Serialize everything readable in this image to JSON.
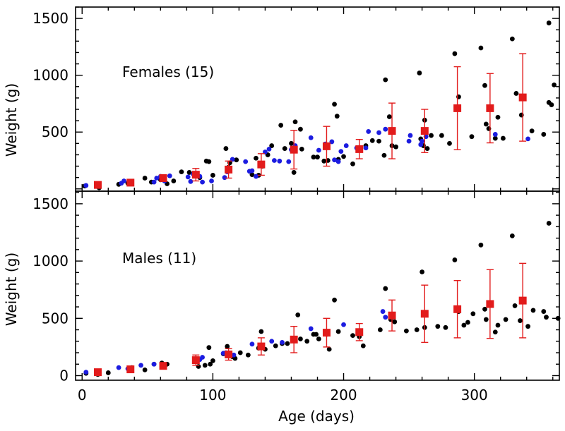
{
  "chart_data": [
    {
      "type": "scatter",
      "panel": "top",
      "title": "Females (15)",
      "xlabel": "",
      "ylabel": "Weight (g)",
      "xlim": [
        -5,
        365
      ],
      "ylim": [
        -20,
        1600
      ],
      "xticks": [],
      "yticks": [
        500,
        1000,
        1500
      ],
      "series": [
        {
          "color": "#000000",
          "points": [
            [
              2,
              25
            ],
            [
              13,
              10
            ],
            [
              28,
              40
            ],
            [
              35,
              50
            ],
            [
              48,
              95
            ],
            [
              53,
              60
            ],
            [
              60,
              80
            ],
            [
              65,
              45
            ],
            [
              70,
              70
            ],
            [
              76,
              150
            ],
            [
              82,
              145
            ],
            [
              87,
              130
            ],
            [
              90,
              100
            ],
            [
              95,
              245
            ],
            [
              97,
              240
            ],
            [
              100,
              120
            ],
            [
              110,
              355
            ],
            [
              112,
              190
            ],
            [
              113,
              230
            ],
            [
              118,
              255
            ],
            [
              130,
              125
            ],
            [
              133,
              270
            ],
            [
              135,
              120
            ],
            [
              138,
              200
            ],
            [
              142,
              300
            ],
            [
              145,
              380
            ],
            [
              152,
              560
            ],
            [
              155,
              355
            ],
            [
              160,
              400
            ],
            [
              162,
              145
            ],
            [
              163,
              590
            ],
            [
              167,
              525
            ],
            [
              168,
              350
            ],
            [
              177,
              280
            ],
            [
              180,
              280
            ],
            [
              185,
              245
            ],
            [
              188,
              250
            ],
            [
              193,
              745
            ],
            [
              195,
              640
            ],
            [
              196,
              260
            ],
            [
              200,
              285
            ],
            [
              207,
              220
            ],
            [
              212,
              350
            ],
            [
              217,
              380
            ],
            [
              222,
              425
            ],
            [
              227,
              420
            ],
            [
              231,
              295
            ],
            [
              232,
              960
            ],
            [
              235,
              635
            ],
            [
              237,
              380
            ],
            [
              240,
              370
            ],
            [
              258,
              1020
            ],
            [
              259,
              440
            ],
            [
              261,
              380
            ],
            [
              262,
              605
            ],
            [
              264,
              355
            ],
            [
              267,
              470
            ],
            [
              275,
              470
            ],
            [
              281,
              400
            ],
            [
              285,
              1190
            ],
            [
              288,
              810
            ],
            [
              298,
              460
            ],
            [
              305,
              1240
            ],
            [
              308,
              910
            ],
            [
              309,
              570
            ],
            [
              311,
              530
            ],
            [
              316,
              445
            ],
            [
              318,
              630
            ],
            [
              322,
              445
            ],
            [
              329,
              1320
            ],
            [
              332,
              840
            ],
            [
              336,
              650
            ],
            [
              344,
              510
            ],
            [
              353,
              480
            ],
            [
              357,
              1460
            ],
            [
              357,
              760
            ],
            [
              359,
              740
            ],
            [
              361,
              915
            ]
          ]
        },
        {
          "color": "#1c1ce0",
          "points": [
            [
              3,
              30
            ],
            [
              30,
              50
            ],
            [
              32,
              70
            ],
            [
              55,
              60
            ],
            [
              57,
              95
            ],
            [
              60,
              110
            ],
            [
              63,
              70
            ],
            [
              67,
              115
            ],
            [
              81,
              105
            ],
            [
              83,
              65
            ],
            [
              85,
              130
            ],
            [
              90,
              110
            ],
            [
              92,
              60
            ],
            [
              99,
              70
            ],
            [
              109,
              100
            ],
            [
              111,
              150
            ],
            [
              112,
              160
            ],
            [
              115,
              260
            ],
            [
              125,
              240
            ],
            [
              128,
              155
            ],
            [
              130,
              160
            ],
            [
              133,
              110
            ],
            [
              140,
              325
            ],
            [
              143,
              350
            ],
            [
              147,
              250
            ],
            [
              151,
              245
            ],
            [
              158,
              240
            ],
            [
              160,
              345
            ],
            [
              163,
              380
            ],
            [
              175,
              450
            ],
            [
              181,
              340
            ],
            [
              186,
              395
            ],
            [
              191,
              415
            ],
            [
              193,
              255
            ],
            [
              196,
              240
            ],
            [
              198,
              330
            ],
            [
              202,
              380
            ],
            [
              210,
              360
            ],
            [
              217,
              360
            ],
            [
              219,
              505
            ],
            [
              227,
              495
            ],
            [
              232,
              525
            ],
            [
              250,
              420
            ],
            [
              251,
              470
            ],
            [
              259,
              390
            ],
            [
              260,
              420
            ],
            [
              263,
              460
            ],
            [
              316,
              480
            ],
            [
              341,
              440
            ]
          ]
        }
      ],
      "means": [
        {
          "x": 12,
          "y": 35,
          "err": 0
        },
        {
          "x": 37,
          "y": 55,
          "err": 0
        },
        {
          "x": 62,
          "y": 95,
          "err": 0
        },
        {
          "x": 87,
          "y": 125,
          "err": 55
        },
        {
          "x": 112,
          "y": 170,
          "err": 75
        },
        {
          "x": 137,
          "y": 215,
          "err": 95
        },
        {
          "x": 162,
          "y": 345,
          "err": 170
        },
        {
          "x": 187,
          "y": 375,
          "err": 175
        },
        {
          "x": 212,
          "y": 350,
          "err": 85
        },
        {
          "x": 237,
          "y": 510,
          "err": 245
        },
        {
          "x": 262,
          "y": 510,
          "err": 190
        },
        {
          "x": 287,
          "y": 710,
          "err": 365
        },
        {
          "x": 312,
          "y": 710,
          "err": 305
        },
        {
          "x": 337,
          "y": 805,
          "err": 385
        }
      ],
      "grid": false
    },
    {
      "type": "scatter",
      "panel": "bottom",
      "title": "Males (11)",
      "xlabel": "Age (days)",
      "ylabel": "Weight (g)",
      "xlim": [
        -5,
        365
      ],
      "ylim": [
        -40,
        1610
      ],
      "xticks": [
        0,
        100,
        200,
        300
      ],
      "yticks": [
        0,
        500,
        1000,
        1500
      ],
      "series": [
        {
          "color": "#000000",
          "points": [
            [
              3,
              20
            ],
            [
              12,
              10
            ],
            [
              20,
              25
            ],
            [
              38,
              70
            ],
            [
              48,
              50
            ],
            [
              55,
              100
            ],
            [
              61,
              110
            ],
            [
              65,
              100
            ],
            [
              87,
              130
            ],
            [
              89,
              80
            ],
            [
              94,
              90
            ],
            [
              97,
              245
            ],
            [
              98,
              100
            ],
            [
              100,
              130
            ],
            [
              108,
              190
            ],
            [
              111,
              255
            ],
            [
              115,
              165
            ],
            [
              117,
              150
            ],
            [
              121,
              200
            ],
            [
              127,
              180
            ],
            [
              135,
              240
            ],
            [
              137,
              385
            ],
            [
              140,
              230
            ],
            [
              148,
              260
            ],
            [
              153,
              280
            ],
            [
              157,
              280
            ],
            [
              165,
              530
            ],
            [
              167,
              320
            ],
            [
              172,
              300
            ],
            [
              177,
              360
            ],
            [
              179,
              360
            ],
            [
              181,
              320
            ],
            [
              187,
              360
            ],
            [
              189,
              230
            ],
            [
              193,
              660
            ],
            [
              196,
              385
            ],
            [
              207,
              350
            ],
            [
              212,
              340
            ],
            [
              215,
              260
            ],
            [
              228,
              400
            ],
            [
              232,
              760
            ],
            [
              236,
              490
            ],
            [
              239,
              470
            ],
            [
              248,
              390
            ],
            [
              256,
              400
            ],
            [
              260,
              905
            ],
            [
              262,
              420
            ],
            [
              272,
              430
            ],
            [
              278,
              420
            ],
            [
              285,
              1010
            ],
            [
              288,
              560
            ],
            [
              292,
              440
            ],
            [
              295,
              465
            ],
            [
              299,
              540
            ],
            [
              305,
              1140
            ],
            [
              308,
              580
            ],
            [
              309,
              490
            ],
            [
              316,
              380
            ],
            [
              318,
              440
            ],
            [
              324,
              490
            ],
            [
              329,
              1220
            ],
            [
              331,
              610
            ],
            [
              335,
              480
            ],
            [
              341,
              430
            ],
            [
              345,
              570
            ],
            [
              353,
              560
            ],
            [
              355,
              510
            ],
            [
              357,
              1330
            ],
            [
              364,
              500
            ]
          ]
        },
        {
          "color": "#1c1ce0",
          "points": [
            [
              3,
              30
            ],
            [
              28,
              70
            ],
            [
              35,
              60
            ],
            [
              45,
              90
            ],
            [
              55,
              100
            ],
            [
              63,
              90
            ],
            [
              90,
              140
            ],
            [
              92,
              160
            ],
            [
              108,
              195
            ],
            [
              110,
              200
            ],
            [
              116,
              180
            ],
            [
              130,
              275
            ],
            [
              137,
              250
            ],
            [
              145,
              300
            ],
            [
              153,
              290
            ],
            [
              175,
              410
            ],
            [
              200,
              445
            ],
            [
              230,
              560
            ],
            [
              232,
              510
            ]
          ]
        }
      ],
      "means": [
        {
          "x": 12,
          "y": 30,
          "err": 0
        },
        {
          "x": 37,
          "y": 55,
          "err": 0
        },
        {
          "x": 62,
          "y": 85,
          "err": 0
        },
        {
          "x": 87,
          "y": 135,
          "err": 45
        },
        {
          "x": 112,
          "y": 185,
          "err": 50
        },
        {
          "x": 137,
          "y": 255,
          "err": 75
        },
        {
          "x": 162,
          "y": 315,
          "err": 115
        },
        {
          "x": 187,
          "y": 375,
          "err": 125
        },
        {
          "x": 212,
          "y": 380,
          "err": 75
        },
        {
          "x": 237,
          "y": 525,
          "err": 135
        },
        {
          "x": 262,
          "y": 540,
          "err": 250
        },
        {
          "x": 287,
          "y": 580,
          "err": 250
        },
        {
          "x": 312,
          "y": 625,
          "err": 300
        },
        {
          "x": 337,
          "y": 655,
          "err": 325
        }
      ],
      "grid": false
    }
  ],
  "colors": {
    "black_points": "#000000",
    "blue_points": "#1c1ce0",
    "means": "#e21b1b"
  }
}
